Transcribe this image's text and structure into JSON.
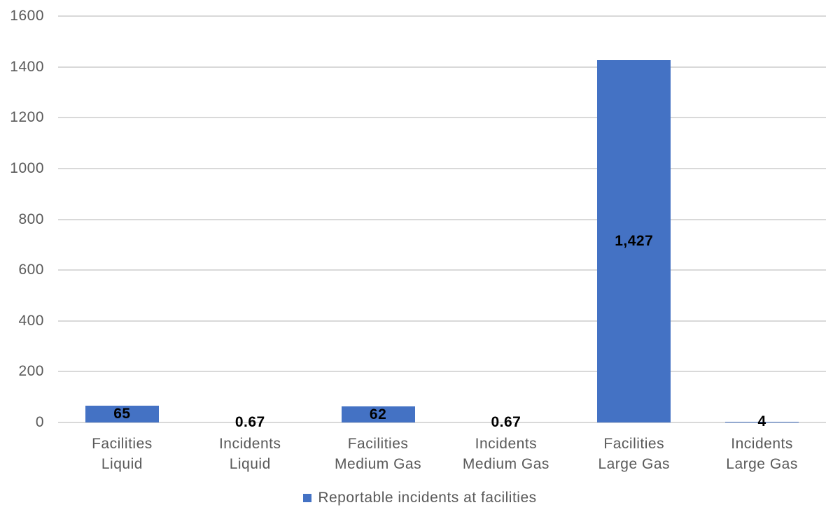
{
  "chart_data": {
    "type": "bar",
    "title": "",
    "categories": [
      {
        "line1": "Facilities",
        "line2": "Liquid"
      },
      {
        "line1": "Incidents",
        "line2": "Liquid"
      },
      {
        "line1": "Facilities",
        "line2": "Medium Gas"
      },
      {
        "line1": "Incidents",
        "line2": "Medium Gas"
      },
      {
        "line1": "Facilities",
        "line2": "Large Gas"
      },
      {
        "line1": "Incidents",
        "line2": "Large Gas"
      }
    ],
    "series": [
      {
        "name": "Reportable incidents at facilities",
        "values": [
          65,
          0.67,
          62,
          0.67,
          1427,
          4
        ]
      }
    ],
    "data_labels": [
      "65",
      "0.67",
      "62",
      "0.67",
      "1,427",
      "4"
    ],
    "ylim": [
      0,
      1600
    ],
    "yticks": [
      0,
      200,
      400,
      600,
      800,
      1000,
      1200,
      1400,
      1600
    ],
    "ytick_labels": [
      "0",
      "200",
      "400",
      "600",
      "800",
      "1000",
      "1200",
      "1400",
      "1600"
    ],
    "grid": true,
    "legend_position": "bottom",
    "legend_label": "Reportable incidents at facilities",
    "colors": {
      "bar": "#4472C4",
      "gridline": "#D9D9D9",
      "axis_text": "#595959",
      "category_text": "#595959",
      "data_label_text": "#000000",
      "legend_text": "#595959",
      "background": "#FFFFFF"
    }
  }
}
